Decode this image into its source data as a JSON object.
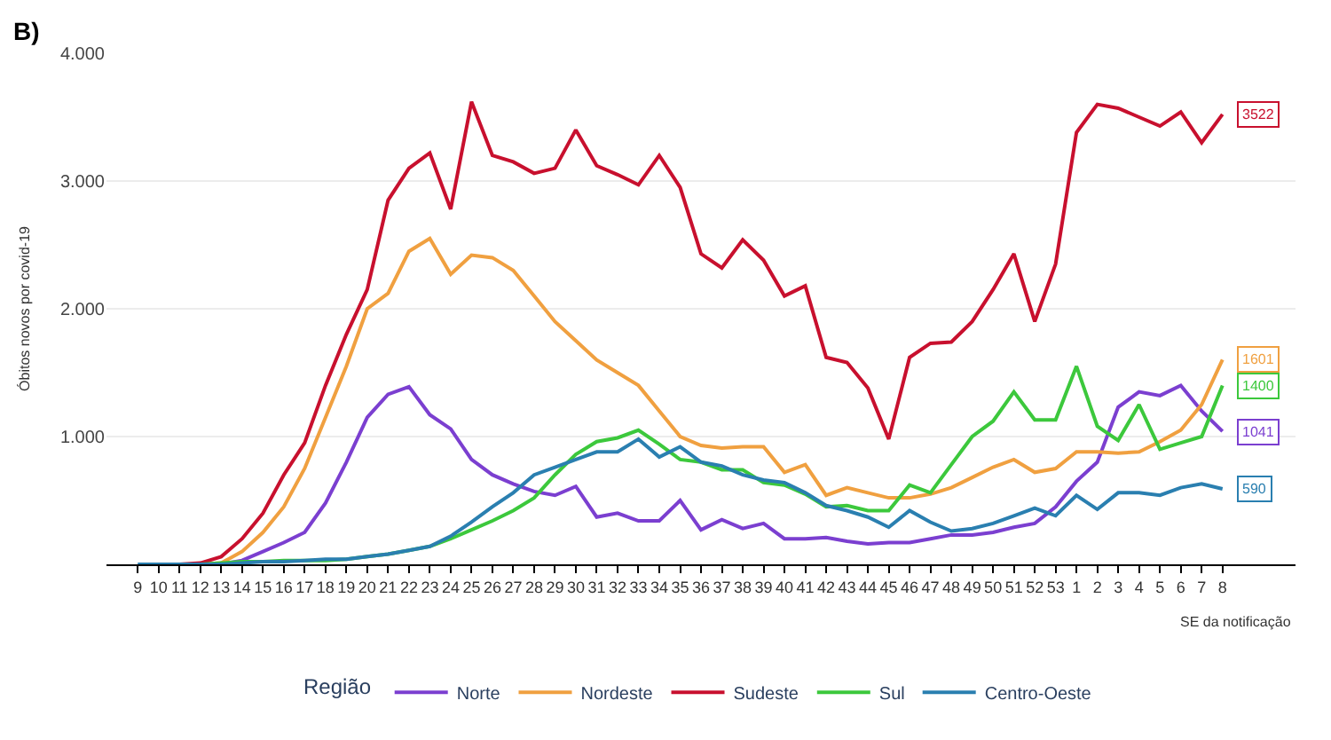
{
  "chart_data": {
    "type": "line",
    "title": "B)",
    "ylabel": "Óbitos novos por covid-19",
    "xlabel": "SE da notificação",
    "legend_title": "Região",
    "legend": "bottom",
    "grid": "y",
    "marker": "none",
    "line_style": "solid",
    "categories": [
      "9",
      "10",
      "11",
      "12",
      "13",
      "14",
      "15",
      "16",
      "17",
      "18",
      "19",
      "20",
      "21",
      "22",
      "23",
      "24",
      "25",
      "26",
      "27",
      "28",
      "29",
      "30",
      "31",
      "32",
      "33",
      "34",
      "35",
      "36",
      "37",
      "38",
      "39",
      "40",
      "41",
      "42",
      "43",
      "44",
      "45",
      "46",
      "47",
      "48",
      "49",
      "50",
      "51",
      "52",
      "53",
      "1",
      "2",
      "3",
      "4",
      "5",
      "6",
      "7",
      "8"
    ],
    "ylim": [
      0,
      4000
    ],
    "yticks": [
      {
        "value": 1000,
        "label": "1.000"
      },
      {
        "value": 2000,
        "label": "2.000"
      },
      {
        "value": 3000,
        "label": "3.000"
      },
      {
        "value": 4000,
        "label": "4.000"
      }
    ],
    "series": [
      {
        "name": "Norte",
        "color": "#7b3fd0",
        "values": [
          null,
          null,
          null,
          0,
          0,
          30,
          100,
          170,
          250,
          480,
          800,
          1150,
          1330,
          1390,
          1170,
          1060,
          820,
          700,
          630,
          570,
          540,
          610,
          370,
          400,
          340,
          340,
          500,
          270,
          350,
          280,
          320,
          200,
          200,
          210,
          180,
          160,
          170,
          170,
          200,
          230,
          230,
          250,
          290,
          320,
          450,
          650,
          800,
          1230,
          1350,
          1320,
          1400,
          1200,
          1041
        ],
        "value_labels": [
          null,
          null,
          null,
          null,
          null,
          null,
          null,
          null,
          null,
          null,
          null,
          null,
          null,
          null,
          null,
          null,
          null,
          null,
          null,
          null,
          null,
          null,
          null,
          null,
          null,
          null,
          null,
          null,
          null,
          null,
          null,
          null,
          null,
          null,
          null,
          null,
          null,
          null,
          null,
          null,
          null,
          null,
          null,
          null,
          null,
          null,
          null,
          null,
          null,
          null,
          null,
          null,
          "1041"
        ]
      },
      {
        "name": "Nordeste",
        "color": "#f0a040",
        "values": [
          null,
          null,
          null,
          0,
          10,
          100,
          250,
          450,
          750,
          1150,
          1550,
          2000,
          2120,
          2450,
          2550,
          2270,
          2420,
          2400,
          2300,
          2100,
          1900,
          1750,
          1600,
          1500,
          1400,
          1200,
          1000,
          930,
          910,
          920,
          920,
          720,
          780,
          540,
          600,
          560,
          520,
          520,
          550,
          600,
          680,
          760,
          820,
          720,
          750,
          880,
          880,
          870,
          880,
          960,
          1050,
          1250,
          1601
        ],
        "value_labels": [
          null,
          null,
          null,
          null,
          null,
          null,
          null,
          null,
          null,
          null,
          null,
          null,
          null,
          null,
          null,
          null,
          null,
          null,
          null,
          null,
          null,
          null,
          null,
          null,
          null,
          null,
          null,
          null,
          null,
          null,
          null,
          null,
          null,
          null,
          null,
          null,
          null,
          null,
          null,
          null,
          null,
          null,
          null,
          null,
          null,
          null,
          null,
          null,
          null,
          null,
          null,
          null,
          "1601"
        ]
      },
      {
        "name": "Sudeste",
        "color": "#c8102e",
        "values": [
          null,
          null,
          0,
          10,
          60,
          200,
          400,
          700,
          950,
          1400,
          1800,
          2150,
          2850,
          3100,
          3220,
          2780,
          3620,
          3200,
          3150,
          3060,
          3100,
          3400,
          3120,
          3050,
          2970,
          3200,
          2950,
          2430,
          2320,
          2540,
          2380,
          2100,
          2180,
          1620,
          1580,
          1380,
          980,
          1620,
          1730,
          1740,
          1900,
          2150,
          2430,
          1900,
          2350,
          3380,
          3600,
          3570,
          3500,
          3430,
          3540,
          3300,
          3522
        ],
        "value_labels": [
          null,
          null,
          null,
          null,
          null,
          null,
          null,
          null,
          null,
          null,
          null,
          null,
          null,
          null,
          null,
          null,
          null,
          null,
          null,
          null,
          null,
          null,
          null,
          null,
          null,
          null,
          null,
          null,
          null,
          null,
          null,
          null,
          null,
          null,
          null,
          null,
          null,
          null,
          null,
          null,
          null,
          null,
          null,
          null,
          null,
          null,
          null,
          null,
          null,
          null,
          null,
          null,
          "3522"
        ]
      },
      {
        "name": "Sul",
        "color": "#3cc83c",
        "values": [
          null,
          null,
          0,
          0,
          10,
          20,
          20,
          30,
          30,
          30,
          40,
          60,
          80,
          110,
          140,
          200,
          270,
          340,
          420,
          520,
          700,
          860,
          960,
          990,
          1050,
          940,
          820,
          800,
          740,
          740,
          640,
          620,
          550,
          450,
          460,
          420,
          420,
          620,
          560,
          780,
          1000,
          1120,
          1350,
          1130,
          1130,
          1550,
          1080,
          970,
          1250,
          900,
          950,
          1000,
          1400
        ],
        "value_labels": [
          null,
          null,
          null,
          null,
          null,
          null,
          null,
          null,
          null,
          null,
          null,
          null,
          null,
          null,
          null,
          null,
          null,
          null,
          null,
          null,
          null,
          null,
          null,
          null,
          null,
          null,
          null,
          null,
          null,
          null,
          null,
          null,
          null,
          null,
          null,
          null,
          null,
          null,
          null,
          null,
          null,
          null,
          null,
          null,
          null,
          null,
          null,
          null,
          null,
          null,
          null,
          null,
          "1400"
        ]
      },
      {
        "name": "Centro-Oeste",
        "color": "#2a7fb0",
        "values": [
          0,
          0,
          0,
          0,
          0,
          10,
          20,
          20,
          30,
          40,
          40,
          60,
          80,
          110,
          140,
          220,
          330,
          450,
          560,
          700,
          760,
          820,
          880,
          880,
          980,
          840,
          920,
          800,
          770,
          700,
          660,
          640,
          560,
          460,
          420,
          370,
          290,
          420,
          330,
          260,
          280,
          320,
          380,
          440,
          380,
          540,
          430,
          560,
          560,
          540,
          600,
          630,
          590
        ],
        "value_labels": [
          null,
          null,
          null,
          null,
          null,
          null,
          null,
          null,
          null,
          null,
          null,
          null,
          null,
          null,
          null,
          null,
          null,
          null,
          null,
          null,
          null,
          null,
          null,
          null,
          null,
          null,
          null,
          null,
          null,
          null,
          null,
          null,
          null,
          null,
          null,
          null,
          null,
          null,
          null,
          null,
          null,
          null,
          null,
          null,
          null,
          null,
          null,
          null,
          null,
          null,
          null,
          null,
          "590"
        ]
      }
    ]
  }
}
